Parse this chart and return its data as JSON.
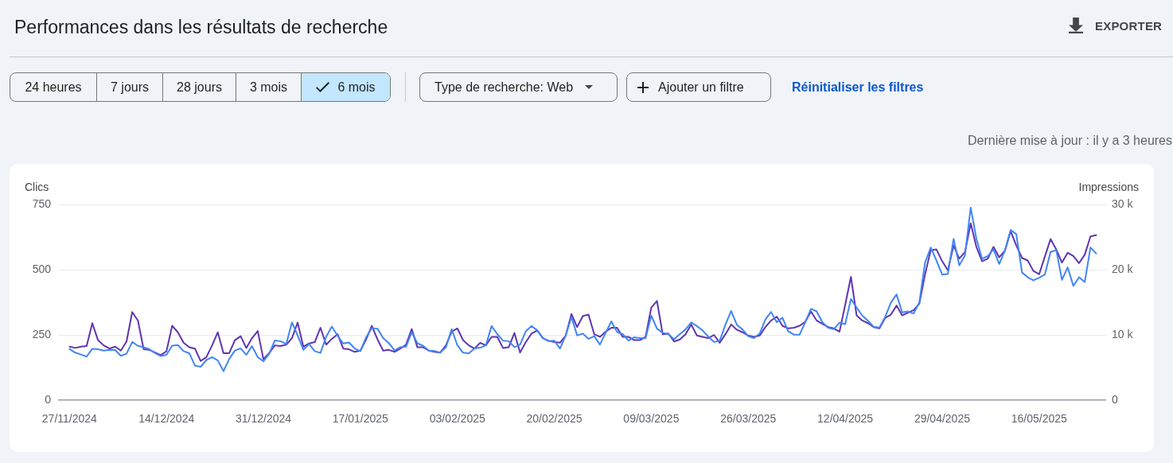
{
  "chart_data": {
    "type": "line",
    "title": "Performances dans les résultats de recherche",
    "annotations": [
      "EXPORTER",
      "24 heures",
      "7 jours",
      "28 jours",
      "3 mois",
      "6 mois",
      "Type de recherche: Web",
      "Ajouter un filtre",
      "Réinitialiser les filtres",
      "Dernière mise à jour : il y a 3 heures"
    ],
    "ylabel": "Clics",
    "y2label": "Impressions",
    "x": [
      "2024-11-27",
      "2024-11-28",
      "2024-11-29",
      "2024-11-30",
      "2024-12-01",
      "2024-12-02",
      "2024-12-03",
      "2024-12-04",
      "2024-12-05",
      "2024-12-06",
      "2024-12-07",
      "2024-12-08",
      "2024-12-09",
      "2024-12-10",
      "2024-12-11",
      "2024-12-12",
      "2024-12-13",
      "2024-12-14",
      "2024-12-15",
      "2024-12-16",
      "2024-12-17",
      "2024-12-18",
      "2024-12-19",
      "2024-12-20",
      "2024-12-21",
      "2024-12-22",
      "2024-12-23",
      "2024-12-24",
      "2024-12-25",
      "2024-12-26",
      "2024-12-27",
      "2024-12-28",
      "2024-12-29",
      "2024-12-30",
      "2024-12-31",
      "2025-01-01",
      "2025-01-02",
      "2025-01-03",
      "2025-01-04",
      "2025-01-05",
      "2025-01-06",
      "2025-01-07",
      "2025-01-08",
      "2025-01-09",
      "2025-01-10",
      "2025-01-11",
      "2025-01-12",
      "2025-01-13",
      "2025-01-14",
      "2025-01-15",
      "2025-01-16",
      "2025-01-17",
      "2025-01-18",
      "2025-01-19",
      "2025-01-20",
      "2025-01-21",
      "2025-01-22",
      "2025-01-23",
      "2025-01-24",
      "2025-01-25",
      "2025-01-26",
      "2025-01-27",
      "2025-01-28",
      "2025-01-29",
      "2025-01-30",
      "2025-01-31",
      "2025-02-01",
      "2025-02-02",
      "2025-02-03",
      "2025-02-04",
      "2025-02-05",
      "2025-02-06",
      "2025-02-07",
      "2025-02-08",
      "2025-02-09",
      "2025-02-10",
      "2025-02-11",
      "2025-02-12",
      "2025-02-13",
      "2025-02-14",
      "2025-02-15",
      "2025-02-16",
      "2025-02-17",
      "2025-02-18",
      "2025-02-19",
      "2025-02-20",
      "2025-02-21",
      "2025-02-22",
      "2025-02-23",
      "2025-02-24",
      "2025-02-25",
      "2025-02-26",
      "2025-02-27",
      "2025-02-28",
      "2025-03-01",
      "2025-03-02",
      "2025-03-03",
      "2025-03-04",
      "2025-03-05",
      "2025-03-06",
      "2025-03-07",
      "2025-03-08",
      "2025-03-09",
      "2025-03-10",
      "2025-03-11",
      "2025-03-12",
      "2025-03-13",
      "2025-03-14",
      "2025-03-15",
      "2025-03-16",
      "2025-03-17",
      "2025-03-18",
      "2025-03-19",
      "2025-03-20",
      "2025-03-21",
      "2025-03-22",
      "2025-03-23",
      "2025-03-24",
      "2025-03-25",
      "2025-03-26",
      "2025-03-27",
      "2025-03-28",
      "2025-03-29",
      "2025-03-30",
      "2025-03-31",
      "2025-04-01",
      "2025-04-02",
      "2025-04-03",
      "2025-04-04",
      "2025-04-05",
      "2025-04-06",
      "2025-04-07",
      "2025-04-08",
      "2025-04-09",
      "2025-04-10",
      "2025-04-11",
      "2025-04-12",
      "2025-04-13",
      "2025-04-14",
      "2025-04-15",
      "2025-04-16",
      "2025-04-17",
      "2025-04-18",
      "2025-04-19",
      "2025-04-20",
      "2025-04-21",
      "2025-04-22",
      "2025-04-23",
      "2025-04-24",
      "2025-04-25",
      "2025-04-26",
      "2025-04-27",
      "2025-04-28",
      "2025-04-29",
      "2025-04-30",
      "2025-05-01",
      "2025-05-02",
      "2025-05-03",
      "2025-05-04",
      "2025-05-05",
      "2025-05-06",
      "2025-05-07",
      "2025-05-08",
      "2025-05-09",
      "2025-05-10",
      "2025-05-11",
      "2025-05-12",
      "2025-05-13",
      "2025-05-14",
      "2025-05-15",
      "2025-05-16",
      "2025-05-17",
      "2025-05-18",
      "2025-05-19",
      "2025-05-20",
      "2025-05-21",
      "2025-05-22",
      "2025-05-23",
      "2025-05-24",
      "2025-05-25",
      "2025-05-26"
    ],
    "series": [
      {
        "color": "#4285f4",
        "values": [
          196,
          182,
          175,
          167,
          197,
          195,
          190,
          193,
          192,
          170,
          178,
          223,
          208,
          203,
          195,
          180,
          169,
          174,
          209,
          211,
          188,
          180,
          132,
          128,
          154,
          165,
          152,
          111,
          158,
          190,
          198,
          174,
          207,
          165,
          149,
          177,
          229,
          226,
          215,
          298,
          248,
          193,
          215,
          188,
          181,
          243,
          282,
          247,
          217,
          221,
          198,
          188,
          241,
          276,
          274,
          238,
          218,
          191,
          203,
          205,
          260,
          218,
          208,
          190,
          188,
          182,
          203,
          272,
          211,
          182,
          179,
          198,
          201,
          210,
          284,
          253,
          228,
          226,
          203,
          213,
          264,
          284,
          268,
          238,
          226,
          228,
          198,
          248,
          319,
          248,
          255,
          235,
          245,
          213,
          258,
          302,
          261,
          253,
          228,
          241,
          238,
          238,
          324,
          274,
          258,
          253,
          233,
          253,
          271,
          298,
          284,
          267,
          243,
          223,
          228,
          289,
          342,
          289,
          271,
          245,
          238,
          255,
          309,
          338,
          299,
          316,
          264,
          251,
          251,
          299,
          350,
          340,
          299,
          277,
          272,
          297,
          291,
          388,
          355,
          324,
          304,
          281,
          278,
          319,
          373,
          405,
          336,
          340,
          332,
          375,
          527,
          585,
          535,
          481,
          484,
          618,
          517,
          555,
          738,
          618,
          542,
          552,
          578,
          522,
          573,
          652,
          636,
          489,
          471,
          459,
          469,
          481,
          568,
          575,
          461,
          509,
          438,
          471,
          453,
          585,
          562
        ]
      },
      {
        "color": "#5e35b1",
        "axis": "y2",
        "values": [
          8200,
          8000,
          8200,
          8300,
          11800,
          9200,
          8400,
          7900,
          8200,
          7600,
          9000,
          13500,
          12200,
          7800,
          7700,
          7300,
          6900,
          7500,
          11400,
          10400,
          8800,
          8100,
          7900,
          6000,
          6600,
          8400,
          10400,
          7200,
          7200,
          9200,
          9800,
          8000,
          9500,
          10600,
          6300,
          7200,
          8400,
          8300,
          8500,
          9500,
          11900,
          8200,
          8700,
          8900,
          11100,
          8500,
          9400,
          10100,
          7900,
          7800,
          7400,
          7600,
          9300,
          11400,
          9300,
          7600,
          7700,
          7400,
          7900,
          8500,
          10900,
          8100,
          8100,
          7600,
          7400,
          7300,
          8400,
          10500,
          11000,
          9200,
          8400,
          7900,
          8800,
          8400,
          9700,
          9700,
          8000,
          8100,
          10300,
          7300,
          8900,
          10200,
          10700,
          9500,
          9100,
          8900,
          8800,
          9900,
          13200,
          11200,
          12900,
          13100,
          10100,
          9700,
          10500,
          11100,
          11100,
          9700,
          9700,
          9200,
          9200,
          9700,
          14200,
          15200,
          10100,
          10200,
          9000,
          9300,
          10100,
          11600,
          9900,
          9700,
          9500,
          10000,
          8800,
          10100,
          11600,
          10800,
          10400,
          9900,
          9700,
          9900,
          11200,
          12200,
          12800,
          11400,
          11000,
          11100,
          11400,
          12000,
          13600,
          12200,
          11700,
          11200,
          11000,
          10500,
          14600,
          18900,
          13000,
          12200,
          11800,
          11200,
          11000,
          12600,
          13100,
          14500,
          13000,
          13400,
          13800,
          14800,
          19300,
          23000,
          23100,
          21300,
          19900,
          23700,
          21700,
          22700,
          27100,
          23500,
          21300,
          21700,
          23500,
          21900,
          22900,
          25900,
          23700,
          21800,
          21400,
          19800,
          19300,
          22000,
          24700,
          23100,
          21100,
          22600,
          22100,
          21000,
          22300,
          25100,
          25300
        ]
      }
    ],
    "xlim": [
      "2024-11-25",
      "2025-05-27T18:00"
    ],
    "xticks": [
      {
        "value": "2024-11-27",
        "label": "27/11/2024"
      },
      {
        "value": "2024-12-14",
        "label": "14/12/2024"
      },
      {
        "value": "2024-12-31",
        "label": "31/12/2024"
      },
      {
        "value": "2025-01-17",
        "label": "17/01/2025"
      },
      {
        "value": "2025-02-03",
        "label": "03/02/2025"
      },
      {
        "value": "2025-02-20",
        "label": "20/02/2025"
      },
      {
        "value": "2025-03-09",
        "label": "09/03/2025"
      },
      {
        "value": "2025-03-26",
        "label": "26/03/2025"
      },
      {
        "value": "2025-04-12",
        "label": "12/04/2025"
      },
      {
        "value": "2025-04-29",
        "label": "29/04/2025"
      },
      {
        "value": "2025-05-16",
        "label": "16/05/2025"
      }
    ],
    "ylim": [
      0,
      750
    ],
    "yticks": [
      0,
      250,
      500,
      750
    ],
    "y2lim": [
      0,
      30000
    ],
    "y2ticks": [
      0,
      {
        "value": 10000,
        "label": "10 k"
      },
      {
        "value": 20000,
        "label": "20 k"
      },
      {
        "value": 30000,
        "label": "30 k"
      }
    ],
    "grid": "y",
    "marker": "none",
    "line_style": "solid"
  }
}
